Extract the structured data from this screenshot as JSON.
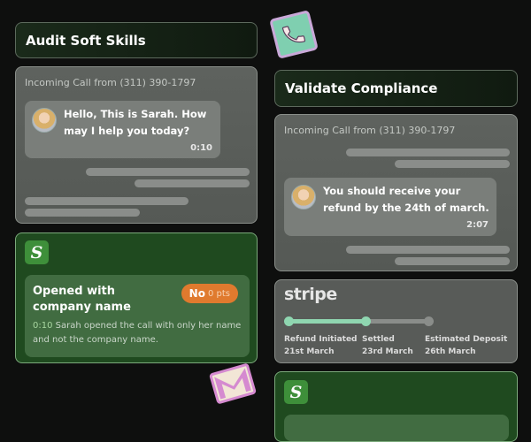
{
  "left": {
    "title": "Audit Soft Skills",
    "call": {
      "label": "Incoming Call from (311) 390-1797",
      "message": "Hello, This is Sarah. How may I help you today?",
      "time": "0:10"
    },
    "score": {
      "logo": "S",
      "criterion": "Opened with company name",
      "badge_result": "No",
      "badge_points": "0 pts",
      "badge_color": "#e07a2e",
      "timestamp": "0:10",
      "explanation": "Sarah opened the call with only her name and not the company name."
    }
  },
  "right": {
    "title": "Validate Compliance",
    "call": {
      "label": "Incoming Call from (311) 390-1797",
      "message": "You should receive your refund by the 24th of march.",
      "time": "2:07"
    },
    "stripe": {
      "logo": "stripe",
      "progress_color": "#8fd6b0",
      "steps": [
        {
          "label": "Refund Initiated",
          "date": "21st March",
          "done": true
        },
        {
          "label": "Settled",
          "date": "23rd March",
          "done": true
        },
        {
          "label": "Estimated Deposit",
          "date": "26th March",
          "done": false
        }
      ]
    },
    "score": {
      "logo": "S"
    }
  },
  "decor": {
    "phone_icon": "phone-icon",
    "mail_icon": "gmail-icon"
  }
}
